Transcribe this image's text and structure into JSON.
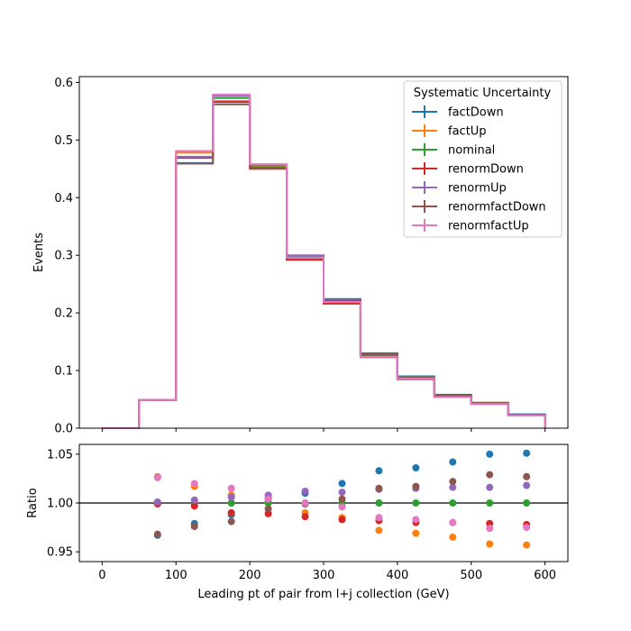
{
  "chart_data": [
    {
      "type": "line",
      "drawstyle": "steps",
      "panel": "main",
      "ylabel": "Events",
      "xlim": [
        -31,
        631
      ],
      "ylim": [
        0,
        0.61
      ],
      "yticks": [
        0.0,
        0.1,
        0.2,
        0.3,
        0.4,
        0.5,
        0.6
      ],
      "ytick_labels": [
        "0.0",
        "0.1",
        "0.2",
        "0.3",
        "0.4",
        "0.5",
        "0.6"
      ],
      "bin_edges": [
        0,
        50,
        100,
        150,
        200,
        250,
        300,
        350,
        400,
        450,
        500,
        550,
        600
      ],
      "legend": {
        "title": "Systematic Uncertainty",
        "placement": "top-right"
      },
      "series": [
        {
          "name": "factDown",
          "color": "#1f77b4",
          "values": [
            0,
            0.049,
            0.46,
            0.566,
            0.455,
            0.297,
            0.224,
            0.13,
            0.09,
            0.058,
            0.044,
            0.024
          ]
        },
        {
          "name": "factUp",
          "color": "#ff7f0e",
          "values": [
            0,
            0.049,
            0.478,
            0.573,
            0.456,
            0.294,
            0.217,
            0.123,
            0.085,
            0.054,
            0.042,
            0.022
          ]
        },
        {
          "name": "nominal",
          "color": "#2ca02c",
          "values": [
            0,
            0.049,
            0.47,
            0.573,
            0.453,
            0.296,
            0.22,
            0.126,
            0.087,
            0.056,
            0.043,
            0.023
          ]
        },
        {
          "name": "renormDown",
          "color": "#d62728",
          "values": [
            0,
            0.049,
            0.469,
            0.567,
            0.45,
            0.292,
            0.216,
            0.124,
            0.085,
            0.055,
            0.042,
            0.023
          ]
        },
        {
          "name": "renormUp",
          "color": "#9467bd",
          "values": [
            0,
            0.049,
            0.471,
            0.577,
            0.457,
            0.3,
            0.222,
            0.128,
            0.089,
            0.057,
            0.044,
            0.023
          ]
        },
        {
          "name": "renormfactDown",
          "color": "#8c564b",
          "values": [
            0,
            0.049,
            0.459,
            0.562,
            0.451,
            0.296,
            0.221,
            0.128,
            0.088,
            0.057,
            0.044,
            0.023
          ]
        },
        {
          "name": "renormfactUp",
          "color": "#e377c2",
          "values": [
            0,
            0.049,
            0.481,
            0.579,
            0.458,
            0.296,
            0.219,
            0.124,
            0.086,
            0.054,
            0.042,
            0.022
          ]
        }
      ]
    },
    {
      "type": "scatter",
      "panel": "ratio",
      "xlabel": "Leading pt of pair from l+j collection (GeV)",
      "ylabel": "Ratio",
      "xlim": [
        -31,
        631
      ],
      "ylim": [
        0.94,
        1.06
      ],
      "xticks": [
        0,
        100,
        200,
        300,
        400,
        500,
        600
      ],
      "xtick_labels": [
        "0",
        "100",
        "200",
        "300",
        "400",
        "500",
        "600"
      ],
      "yticks": [
        0.95,
        1.0,
        1.05
      ],
      "ytick_labels": [
        "0.95",
        "1.00",
        "1.05"
      ],
      "reference_line": 1.0,
      "x": [
        75,
        125,
        175,
        225,
        275,
        325,
        375,
        425,
        475,
        525,
        575
      ],
      "series": [
        {
          "name": "factDown",
          "color": "#1f77b4",
          "values": [
            0.967,
            0.979,
            0.988,
            1.005,
            1.01,
            1.02,
            1.033,
            1.036,
            1.042,
            1.05,
            1.051
          ]
        },
        {
          "name": "factUp",
          "color": "#ff7f0e",
          "values": [
            1.027,
            1.017,
            1.008,
            1.002,
            0.99,
            0.985,
            0.972,
            0.969,
            0.965,
            0.958,
            0.957
          ]
        },
        {
          "name": "nominal",
          "color": "#2ca02c",
          "values": [
            1.0,
            1.0,
            1.0,
            1.0,
            1.0,
            1.0,
            1.0,
            1.0,
            1.0,
            1.0,
            1.0
          ]
        },
        {
          "name": "renormDown",
          "color": "#d62728",
          "values": [
            0.999,
            0.997,
            0.99,
            0.989,
            0.986,
            0.983,
            0.982,
            0.98,
            0.98,
            0.979,
            0.978
          ]
        },
        {
          "name": "renormUp",
          "color": "#9467bd",
          "values": [
            1.001,
            1.003,
            1.006,
            1.008,
            1.012,
            1.011,
            1.014,
            1.015,
            1.016,
            1.016,
            1.018
          ]
        },
        {
          "name": "renormfactDown",
          "color": "#8c564b",
          "values": [
            0.968,
            0.976,
            0.981,
            0.994,
            0.999,
            1.004,
            1.015,
            1.017,
            1.022,
            1.029,
            1.027
          ]
        },
        {
          "name": "renormfactUp",
          "color": "#e377c2",
          "values": [
            1.026,
            1.02,
            1.015,
            1.004,
            1.0,
            0.996,
            0.985,
            0.983,
            0.98,
            0.974,
            0.975
          ]
        }
      ]
    }
  ]
}
